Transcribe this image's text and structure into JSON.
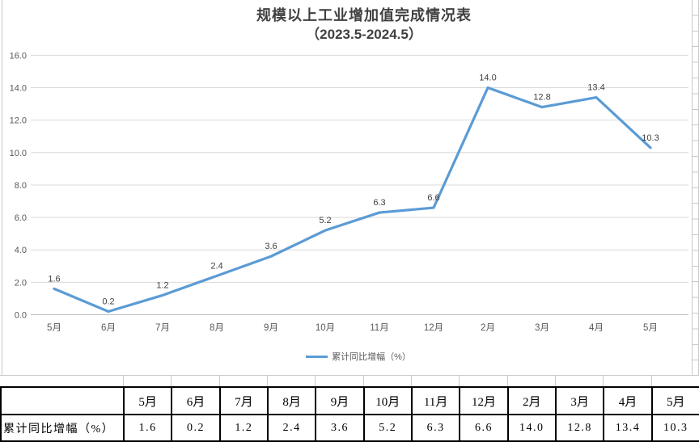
{
  "title": {
    "line1": "规模以上工业增加值完成情况表",
    "line2": "（2023.5-2024.5）"
  },
  "chart_data": {
    "type": "line",
    "title": "规模以上工业增加值完成情况表",
    "subtitle": "（2023.5-2024.5）",
    "categories": [
      "5月",
      "6月",
      "7月",
      "8月",
      "9月",
      "10月",
      "11月",
      "12月",
      "2月",
      "3月",
      "4月",
      "5月"
    ],
    "series": [
      {
        "name": "累计同比增幅（%）",
        "values": [
          1.6,
          0.2,
          1.2,
          2.4,
          3.6,
          5.2,
          6.3,
          6.6,
          14.0,
          12.8,
          13.4,
          10.3
        ]
      }
    ],
    "data_labels": [
      "1.6",
      "0.2",
      "1.2",
      "2.4",
      "3.6",
      "5.2",
      "6.3",
      "6.6",
      "14.0",
      "12.8",
      "13.4",
      "10.3"
    ],
    "ylabel": "",
    "xlabel": "",
    "ylim": [
      0,
      16
    ],
    "ytick_step": 2,
    "ytick_labels": [
      "0.0",
      "2.0",
      "4.0",
      "6.0",
      "8.0",
      "10.0",
      "12.0",
      "14.0",
      "16.0"
    ],
    "grid": true,
    "legend_position": "bottom",
    "colors": {
      "line": "#5B9BD5",
      "gridline": "#D9D9D9",
      "axis_line": "#BFBFBF",
      "axis_text": "#595959",
      "data_label_text": "#404040",
      "title_text": "#404040"
    }
  },
  "table": {
    "corner_cell": "",
    "columns": [
      "5月",
      "6月",
      "7月",
      "8月",
      "9月",
      "10月",
      "11月",
      "12月",
      "2月",
      "3月",
      "4月",
      "5月"
    ],
    "row_label": "累计同比增幅（%）",
    "values": [
      "1.6",
      "0.2",
      "1.2",
      "2.4",
      "3.6",
      "5.2",
      "6.3",
      "6.6",
      "14.0",
      "12.8",
      "13.4",
      "10.3"
    ]
  }
}
